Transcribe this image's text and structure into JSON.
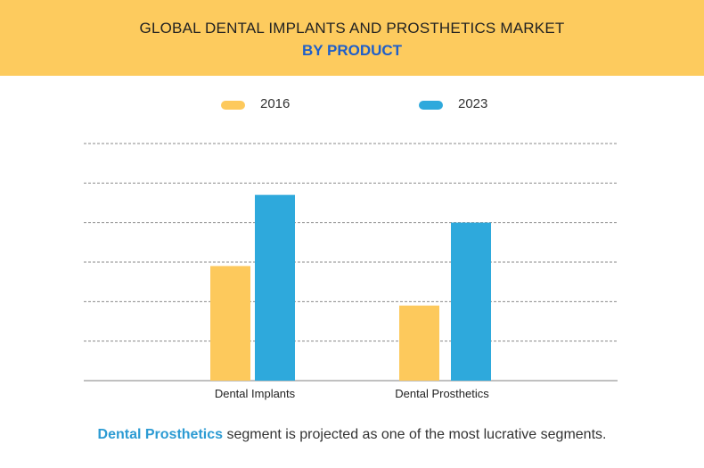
{
  "header": {
    "title": "GLOBAL DENTAL IMPLANTS AND PROSTHETICS MARKET",
    "subtitle": "BY PRODUCT"
  },
  "colors": {
    "banner": "#fdcb5e",
    "subtitle": "#1f5fc9",
    "series_2016": "#fdc95c",
    "series_2023": "#2ea9dc",
    "footer_highlight": "#2c9bd3",
    "grid": "#8a8a8a"
  },
  "chart_data": {
    "type": "bar",
    "title": "GLOBAL DENTAL IMPLANTS AND PROSTHETICS MARKET",
    "subtitle": "BY PRODUCT",
    "categories": [
      "Dental Implants",
      "Dental Prosthetics"
    ],
    "series": [
      {
        "name": "2016",
        "values": [
          2.9,
          1.9
        ]
      },
      {
        "name": "2023",
        "values": [
          4.7,
          4.0
        ]
      }
    ],
    "ylim": [
      0,
      6
    ],
    "y_ticks": [
      0,
      1,
      2,
      3,
      4,
      5,
      6
    ],
    "y_tick_labels_shown": false,
    "grid": "dashed horizontal",
    "legend": "top-center"
  },
  "footer": {
    "highlight": "Dental Prosthetics",
    "text": " segment is projected as one of the most lucrative segments."
  }
}
